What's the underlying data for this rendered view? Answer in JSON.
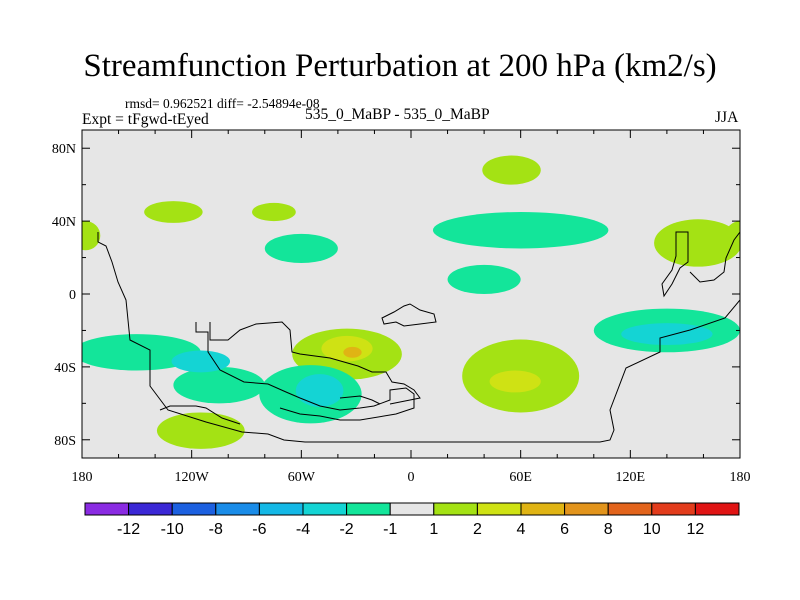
{
  "chart_data": {
    "type": "contour-map",
    "title": "Streamfunction Perturbation at 200 hPa (km2/s)",
    "stats": "rmsd= 0.962521 diff= -2.54894e-08",
    "experiment": "Expt = tFgwd-tEyed",
    "subtitle": "535_0_MaBP - 535_0_MaBP",
    "season": "JJA",
    "x_ticks": [
      {
        "value": -180,
        "label": "180"
      },
      {
        "value": -120,
        "label": "120W"
      },
      {
        "value": -60,
        "label": "60W"
      },
      {
        "value": 0,
        "label": "0"
      },
      {
        "value": 60,
        "label": "60E"
      },
      {
        "value": 120,
        "label": "120E"
      },
      {
        "value": 180,
        "label": "180"
      }
    ],
    "y_ticks": [
      {
        "value": 80,
        "label": "80N"
      },
      {
        "value": 40,
        "label": "40N"
      },
      {
        "value": 0,
        "label": "0"
      },
      {
        "value": -40,
        "label": "40S"
      },
      {
        "value": -80,
        "label": "80S"
      }
    ],
    "xlim": [
      -180,
      180
    ],
    "ylim": [
      -90,
      90
    ],
    "colorbar": {
      "colors": [
        "#8a2be2",
        "#3b28d6",
        "#1c60e0",
        "#1a8ce8",
        "#14b8e6",
        "#14d4d4",
        "#13e59a",
        "#e6e6e6",
        "#a4e214",
        "#cfe214",
        "#e0b414",
        "#e2941c",
        "#e2641c",
        "#e23c1c",
        "#e01414"
      ],
      "labels": [
        "-12",
        "-10",
        "-8",
        "-6",
        "-4",
        "-2",
        "-1",
        "1",
        "2",
        "4",
        "6",
        "8",
        "10",
        "12"
      ]
    },
    "regions": [
      {
        "level": 1,
        "color": "#a4e214",
        "center": [
          -115,
          -75
        ],
        "radius": [
          24,
          10
        ]
      },
      {
        "level": 1,
        "color": "#a4e214",
        "center": [
          -130,
          45
        ],
        "radius": [
          16,
          6
        ]
      },
      {
        "level": 1,
        "color": "#a4e214",
        "center": [
          -75,
          45
        ],
        "radius": [
          12,
          5
        ]
      },
      {
        "level": 1,
        "color": "#a4e214",
        "center": [
          55,
          68
        ],
        "radius": [
          16,
          8
        ]
      },
      {
        "level": 1,
        "color": "#a4e214",
        "center": [
          -35,
          -33
        ],
        "radius": [
          30,
          14
        ]
      },
      {
        "level": 1,
        "color": "#a4e214",
        "center": [
          60,
          -45
        ],
        "radius": [
          32,
          20
        ]
      },
      {
        "level": 1,
        "color": "#a4e214",
        "center": [
          157,
          28
        ],
        "radius": [
          24,
          13
        ]
      },
      {
        "level": 1,
        "color": "#a4e214",
        "center": [
          -178,
          32
        ],
        "radius": [
          8,
          8
        ]
      },
      {
        "level": 1,
        "color": "#a4e214",
        "center": [
          180,
          32
        ],
        "radius": [
          8,
          8
        ]
      },
      {
        "level": -1,
        "color": "#13e59a",
        "center": [
          -150,
          -32
        ],
        "radius": [
          35,
          10
        ]
      },
      {
        "level": -1,
        "color": "#13e59a",
        "center": [
          -105,
          -50
        ],
        "radius": [
          25,
          10
        ]
      },
      {
        "level": -1,
        "color": "#13e59a",
        "center": [
          -55,
          -55
        ],
        "radius": [
          28,
          16
        ]
      },
      {
        "level": -1,
        "color": "#13e59a",
        "center": [
          -60,
          25
        ],
        "radius": [
          20,
          8
        ]
      },
      {
        "level": -1,
        "color": "#13e59a",
        "center": [
          60,
          35
        ],
        "radius": [
          48,
          10
        ]
      },
      {
        "level": -1,
        "color": "#13e59a",
        "center": [
          40,
          8
        ],
        "radius": [
          20,
          8
        ]
      },
      {
        "level": -1,
        "color": "#13e59a",
        "center": [
          140,
          -20
        ],
        "radius": [
          40,
          12
        ]
      },
      {
        "level": 2,
        "color": "#cfe214",
        "center": [
          -35,
          -30
        ],
        "radius": [
          14,
          7
        ]
      },
      {
        "level": 2,
        "color": "#cfe214",
        "center": [
          57,
          -48
        ],
        "radius": [
          14,
          6
        ]
      },
      {
        "level": -2,
        "color": "#14d4d4",
        "center": [
          -115,
          -37
        ],
        "radius": [
          16,
          6
        ]
      },
      {
        "level": -2,
        "color": "#14d4d4",
        "center": [
          -50,
          -53
        ],
        "radius": [
          13,
          9
        ]
      },
      {
        "level": -2,
        "color": "#14d4d4",
        "center": [
          140,
          -22
        ],
        "radius": [
          25,
          6
        ]
      },
      {
        "level": 4,
        "color": "#e0b414",
        "center": [
          -32,
          -32
        ],
        "radius": [
          5,
          3
        ]
      }
    ]
  }
}
